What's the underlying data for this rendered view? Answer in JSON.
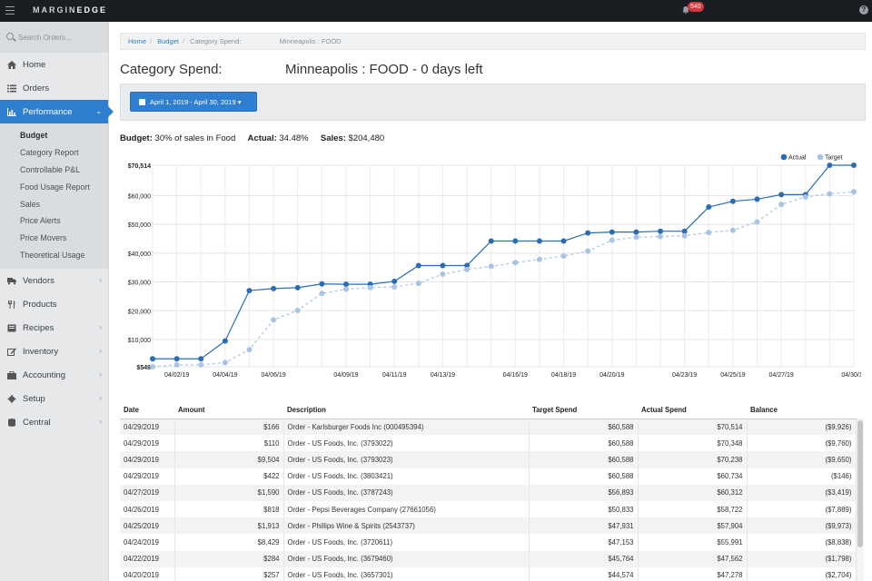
{
  "topbar": {
    "logo_a": "MARGIN",
    "logo_b": "EDGE",
    "badge": "540"
  },
  "sidebar": {
    "search_placeholder": "Search Orders...",
    "items": [
      {
        "key": "home",
        "label": "Home",
        "icon": "home-icon"
      },
      {
        "key": "orders",
        "label": "Orders",
        "icon": "list-icon"
      },
      {
        "key": "performance",
        "label": "Performance",
        "icon": "bar-chart-icon"
      }
    ],
    "subitems": [
      "Budget",
      "Category Report",
      "Controllable P&L",
      "Food Usage Report",
      "Sales",
      "Price Alerts",
      "Price Movers",
      "Theoretical Usage"
    ],
    "items2": [
      {
        "key": "vendors",
        "label": "Vendors",
        "icon": "truck-icon"
      },
      {
        "key": "products",
        "label": "Products",
        "icon": "utensils-icon"
      },
      {
        "key": "recipes",
        "label": "Recipes",
        "icon": "book-icon"
      },
      {
        "key": "inventory",
        "label": "Inventory",
        "icon": "edit-icon"
      },
      {
        "key": "accounting",
        "label": "Accounting",
        "icon": "briefcase-icon"
      },
      {
        "key": "setup",
        "label": "Setup",
        "icon": "gear-icon"
      },
      {
        "key": "central",
        "label": "Central",
        "icon": "database-icon"
      }
    ]
  },
  "breadcrumb": {
    "home": "Home",
    "budget": "Budget",
    "current_a": "Category Spend:",
    "current_b": "Minneapolis : FOOD"
  },
  "page": {
    "title_left": "Category Spend:",
    "title_right": "Minneapolis : FOOD - 0 days left"
  },
  "filter": {
    "date_range": "April 1, 2019 - April 30, 2019"
  },
  "summary": {
    "budget_label": "Budget:",
    "budget_value": "30% of sales in Food",
    "actual_label": "Actual:",
    "actual_value": "34.48%",
    "sales_label": "Sales:",
    "sales_value": "$204,480"
  },
  "chart_data": {
    "type": "line",
    "x": [
      "04/01/19",
      "04/02/19",
      "04/03/19",
      "04/04/19",
      "04/05/19",
      "04/06/19",
      "04/07/19",
      "04/08/19",
      "04/09/19",
      "04/10/19",
      "04/11/19",
      "04/12/19",
      "04/13/19",
      "04/14/19",
      "04/15/19",
      "04/16/19",
      "04/17/19",
      "04/18/19",
      "04/19/19",
      "04/20/19",
      "04/21/19",
      "04/22/19",
      "04/23/19",
      "04/24/19",
      "04/25/19",
      "04/26/19",
      "04/27/19",
      "04/28/19",
      "04/29/19",
      "04/30/19"
    ],
    "x_tick_labels": [
      "04/02/19",
      "04/04/19",
      "04/06/19",
      "04/09/19",
      "04/11/19",
      "04/13/19",
      "04/16/19",
      "04/18/19",
      "04/20/19",
      "04/23/19",
      "04/25/19",
      "04/27/19",
      "04/30/19"
    ],
    "y_tick_labels": [
      "$549",
      "$10,000",
      "$20,000",
      "$30,000",
      "$40,000",
      "$50,000",
      "$60,000",
      "$70,514"
    ],
    "y_ticks": [
      549,
      10000,
      20000,
      30000,
      40000,
      50000,
      60000,
      70514
    ],
    "ylim": [
      549,
      70514
    ],
    "grid": true,
    "legend_position": "top-right",
    "series": [
      {
        "name": "Actual",
        "color": "#2a6db5",
        "dashed": false,
        "values": [
          3300,
          3300,
          3300,
          9500,
          27000,
          27700,
          28000,
          29300,
          29200,
          29200,
          30200,
          35700,
          35700,
          35700,
          44200,
          44200,
          44200,
          44200,
          47000,
          47300,
          47300,
          47600,
          47600,
          56000,
          58000,
          58722,
          60312,
          60312,
          70514,
          70514
        ]
      },
      {
        "name": "Target",
        "color": "#a9c3e4",
        "dashed": true,
        "values": [
          549,
          1200,
          1200,
          2000,
          6500,
          16800,
          20100,
          26000,
          27500,
          28000,
          28300,
          29500,
          32700,
          34300,
          35400,
          36700,
          37800,
          39000,
          40700,
          44500,
          45500,
          45764,
          46000,
          47153,
          47931,
          50833,
          56893,
          59500,
          60588,
          61300
        ]
      }
    ]
  },
  "table": {
    "headers": [
      "Date",
      "Amount",
      "Description",
      "Target Spend",
      "Actual Spend",
      "Balance"
    ],
    "rows": [
      [
        "04/29/2019",
        "$166",
        "Order - Karlsburger Foods Inc (000495394)",
        "$60,588",
        "$70,514",
        "($9,926)"
      ],
      [
        "04/29/2019",
        "$110",
        "Order - US Foods, Inc. (3793022)",
        "$60,588",
        "$70,348",
        "($9,760)"
      ],
      [
        "04/29/2019",
        "$9,504",
        "Order - US Foods, Inc. (3793023)",
        "$60,588",
        "$70,238",
        "($9,650)"
      ],
      [
        "04/29/2019",
        "$422",
        "Order - US Foods, Inc. (3803421)",
        "$60,588",
        "$60,734",
        "($146)"
      ],
      [
        "04/27/2019",
        "$1,590",
        "Order - US Foods, Inc. (3787243)",
        "$56,893",
        "$60,312",
        "($3,419)"
      ],
      [
        "04/26/2019",
        "$818",
        "Order - Pepsi Beverages Company (27661056)",
        "$50,833",
        "$58,722",
        "($7,889)"
      ],
      [
        "04/25/2019",
        "$1,913",
        "Order - Phillips Wine & Spirits (2543737)",
        "$47,931",
        "$57,904",
        "($9,973)"
      ],
      [
        "04/24/2019",
        "$8,429",
        "Order - US Foods, Inc. (3720611)",
        "$47,153",
        "$55,991",
        "($8,838)"
      ],
      [
        "04/22/2019",
        "$284",
        "Order - US Foods, Inc. (3679460)",
        "$45,764",
        "$47,562",
        "($1,798)"
      ],
      [
        "04/20/2019",
        "$257",
        "Order - US Foods, Inc. (3657301)",
        "$44,574",
        "$47,278",
        "($2,704)"
      ]
    ]
  }
}
